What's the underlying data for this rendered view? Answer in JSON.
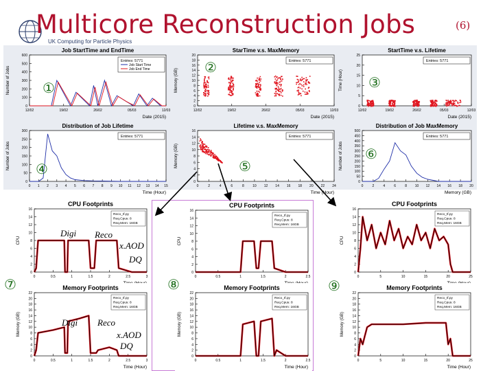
{
  "title": "Multicore Reconstruction Jobs",
  "title_sup": "(6)",
  "logo_text": "UK Computing for Particle Physics",
  "colors": {
    "title": "#b0122e",
    "circle": "#1d6e1b",
    "red": "#e0141e",
    "blue": "#1f2fa8",
    "black": "#000000",
    "frame": "#c77ad6"
  },
  "circled_numbers": [
    "①",
    "②",
    "③",
    "④",
    "⑤",
    "⑥",
    "⑦",
    "⑧",
    "⑨"
  ],
  "overlay_labels": {
    "p7_cpu": [
      "Digi",
      "Reco",
      "x.AOD",
      "DQ"
    ],
    "p7_mem": [
      "Digi",
      "Reco",
      "x.AOD",
      "DQ"
    ]
  },
  "chart_data": [
    {
      "id": "p1",
      "type": "line",
      "title": "Job StartTime and EndTime",
      "xlabel": "Date (2015)",
      "ylabel": "Number of Jobs",
      "ylim": [
        0,
        600
      ],
      "yticks": [
        "0",
        "100",
        "200",
        "300",
        "400",
        "500",
        "600"
      ],
      "xticks": [
        "12/02",
        "19/02",
        "26/02",
        "05/03",
        "12/03"
      ],
      "stats": "Entries: 5771",
      "legend": [
        "Job Start Time",
        "Job End Time"
      ],
      "series": [
        {
          "name": "Job Start Time",
          "x": [
            0,
            0.16,
            0.2,
            0.3,
            0.34,
            0.44,
            0.47,
            0.5,
            0.55,
            0.6,
            0.64,
            0.7,
            0.76,
            0.8,
            0.86,
            0.9,
            0.96,
            1
          ],
          "values": [
            0,
            0,
            300,
            0,
            160,
            0,
            240,
            0,
            300,
            0,
            120,
            60,
            0,
            140,
            0,
            90,
            0,
            0
          ]
        },
        {
          "name": "Job End Time",
          "x": [
            0,
            0.17,
            0.21,
            0.31,
            0.35,
            0.45,
            0.48,
            0.51,
            0.56,
            0.61,
            0.65,
            0.71,
            0.77,
            0.81,
            0.87,
            0.91,
            0.97,
            1
          ],
          "values": [
            0,
            0,
            280,
            0,
            150,
            0,
            220,
            0,
            280,
            0,
            110,
            50,
            0,
            130,
            0,
            80,
            0,
            0
          ]
        }
      ]
    },
    {
      "id": "p2",
      "type": "scatter",
      "title": "StarTime v.s. MaxMemory",
      "xlabel": "Date (2015)",
      "ylabel": "Memory (GB)",
      "ylim": [
        0,
        20
      ],
      "yticks": [
        "0",
        "2",
        "4",
        "6",
        "8",
        "10",
        "12",
        "14",
        "16",
        "18",
        "20"
      ],
      "xticks": [
        "12/02",
        "19/02",
        "26/02",
        "05/03",
        "12/03"
      ],
      "stats": "Entries: 5771",
      "clusters": [
        {
          "x": [
            0.04,
            0.08
          ],
          "y": [
            4,
            12
          ]
        },
        {
          "x": [
            0.22,
            0.26
          ],
          "y": [
            4,
            12
          ]
        },
        {
          "x": [
            0.42,
            0.46
          ],
          "y": [
            4,
            12
          ]
        },
        {
          "x": [
            0.56,
            0.62
          ],
          "y": [
            4,
            12
          ]
        },
        {
          "x": [
            0.72,
            0.82
          ],
          "y": [
            4,
            12
          ]
        }
      ]
    },
    {
      "id": "p3",
      "type": "scatter",
      "title": "StartTime v.s. Lifetime",
      "xlabel": "Date (2015)",
      "ylabel": "Time (Hour)",
      "ylim": [
        0,
        25
      ],
      "yticks": [
        "0",
        "5",
        "10",
        "15",
        "20",
        "25"
      ],
      "xticks": [
        "12/02",
        "19/02",
        "26/02",
        "05/03",
        "12/03"
      ],
      "stats": "Entries: 5771",
      "clusters": [
        {
          "x": [
            0.04,
            0.1
          ],
          "y": [
            0,
            3
          ]
        },
        {
          "x": [
            0.24,
            0.3
          ],
          "y": [
            0,
            3
          ]
        },
        {
          "x": [
            0.46,
            0.52
          ],
          "y": [
            0,
            3
          ]
        },
        {
          "x": [
            0.62,
            0.68
          ],
          "y": [
            0,
            3
          ]
        },
        {
          "x": [
            0.76,
            0.9
          ],
          "y": [
            0,
            3
          ]
        }
      ]
    },
    {
      "id": "p4",
      "type": "line",
      "title": "Distribution of Job Lifetime",
      "xlabel": "Time (Hour)",
      "ylabel": "Number of Jobs",
      "ylim": [
        0,
        300
      ],
      "yticks": [
        "0",
        "50",
        "100",
        "150",
        "200",
        "250",
        "300"
      ],
      "xticks": [
        "0",
        "1",
        "2",
        "3",
        "4",
        "5",
        "6",
        "7",
        "8",
        "9",
        "10",
        "11",
        "12",
        "13",
        "14",
        "15"
      ],
      "stats": "Entries: 5771",
      "series": [
        {
          "name": "",
          "x": [
            0,
            1,
            1.5,
            2,
            2.2,
            2.5,
            3,
            3.5,
            4,
            4.5,
            5,
            6,
            7,
            8,
            10,
            15
          ],
          "values": [
            0,
            0,
            20,
            280,
            240,
            180,
            150,
            80,
            40,
            20,
            10,
            5,
            3,
            2,
            0,
            0
          ]
        }
      ]
    },
    {
      "id": "p5",
      "type": "scatter",
      "title": "Lifetime v.s. MaxMemory",
      "xlabel": "Time (Hour)",
      "ylabel": "Memory (GB)",
      "ylim": [
        0,
        16
      ],
      "yticks": [
        "0",
        "2",
        "4",
        "6",
        "8",
        "10",
        "12",
        "14",
        "16"
      ],
      "xticks": [
        "0",
        "2",
        "4",
        "6",
        "8",
        "10",
        "12",
        "14",
        "16",
        "18",
        "20",
        "22",
        "24"
      ],
      "stats": "Entries: 5771",
      "clusters": [
        {
          "x": [
            0.5,
            4
          ],
          "y": [
            4,
            12
          ]
        }
      ]
    },
    {
      "id": "p6",
      "type": "line",
      "title": "Distribution of Job MaxMemory",
      "xlabel": "Memory (GB)",
      "ylabel": "Number of Jobs",
      "ylim": [
        0,
        500
      ],
      "yticks": [
        "0",
        "50",
        "100",
        "150",
        "200",
        "250",
        "300",
        "350",
        "400",
        "450",
        "500"
      ],
      "xticks": [
        "0",
        "2",
        "4",
        "6",
        "8",
        "10",
        "12",
        "14",
        "16",
        "18",
        "20"
      ],
      "stats": "Entries: 5771",
      "series": [
        {
          "name": "",
          "x": [
            0,
            2,
            3,
            4,
            5,
            6,
            7,
            8,
            9,
            10,
            11,
            12,
            13,
            14,
            20
          ],
          "values": [
            0,
            0,
            30,
            120,
            200,
            380,
            300,
            260,
            150,
            80,
            40,
            20,
            10,
            0,
            0
          ]
        }
      ]
    },
    {
      "id": "p7",
      "type": "line",
      "title": "CPU Footprints",
      "xlabel": "Time (Hour)",
      "ylabel": "CPU",
      "ylim": [
        0,
        16
      ],
      "yticks": [
        "0",
        "2",
        "4",
        "6",
        "8",
        "10",
        "12",
        "14",
        "16"
      ],
      "xticks": [
        "0",
        "0.5",
        "1",
        "1.5",
        "2",
        "2.5",
        "3"
      ],
      "legend_box": [
        "Reco_tf.py",
        "Req.Cpus: 8",
        "Req.Mem: 16GB"
      ],
      "series": [
        {
          "name": "",
          "x": [
            0,
            0.05,
            0.1,
            0.8,
            0.82,
            0.88,
            0.9,
            1.45,
            1.5,
            1.6,
            1.65,
            2.2,
            2.25,
            2.6,
            3
          ],
          "values": [
            0,
            1,
            8,
            8,
            0,
            0,
            8,
            8,
            1,
            1,
            8,
            8,
            1,
            0,
            0
          ]
        }
      ]
    },
    {
      "id": "p8",
      "type": "line",
      "title": "CPU Footprints",
      "xlabel": "Time (Hour)",
      "ylabel": "CPU",
      "ylim": [
        0,
        16
      ],
      "yticks": [
        "0",
        "2",
        "4",
        "6",
        "8",
        "10",
        "12",
        "14",
        "16"
      ],
      "xticks": [
        "0",
        "0.5",
        "1",
        "1.5",
        "2",
        "2.5"
      ],
      "legend_box": [
        "Reco_tf.py",
        "Req.Cpus: 8",
        "Req.Mem: 16GB"
      ],
      "series": [
        {
          "name": "",
          "x": [
            0,
            1.0,
            1.05,
            1.3,
            1.35,
            1.4,
            1.45,
            1.7,
            1.75,
            2.0,
            2.5
          ],
          "values": [
            0,
            0,
            8,
            8,
            1,
            1,
            8,
            8,
            1,
            0,
            0
          ]
        }
      ]
    },
    {
      "id": "p9",
      "type": "line",
      "title": "CPU Footprints",
      "xlabel": "Time (Hour)",
      "ylabel": "CPU",
      "ylim": [
        0,
        16
      ],
      "yticks": [
        "0",
        "2",
        "4",
        "6",
        "8",
        "10",
        "12",
        "14",
        "16"
      ],
      "xticks": [
        "0",
        "5",
        "10",
        "15",
        "20",
        "25"
      ],
      "legend_box": [
        "Reco_tf.py",
        "Req.Cpus: 8",
        "Req.Mem: 16GB"
      ],
      "series": [
        {
          "name": "",
          "x": [
            0,
            0.5,
            1,
            2,
            3,
            4,
            5,
            6,
            7,
            8,
            9,
            10,
            11,
            12,
            13,
            14,
            15,
            16,
            17,
            18,
            19,
            20,
            20.5,
            21,
            25
          ],
          "values": [
            0,
            6,
            14,
            8,
            12,
            6,
            10,
            7,
            13,
            8,
            11,
            6,
            9,
            7,
            12,
            8,
            10,
            6,
            11,
            8,
            9,
            7,
            2,
            0,
            0
          ]
        }
      ]
    },
    {
      "id": "p10",
      "type": "line",
      "title": "Memory Footprints",
      "xlabel": "Time (Hour)",
      "ylabel": "Memory (GB)",
      "ylim": [
        0,
        22
      ],
      "yticks": [
        "0",
        "2",
        "4",
        "6",
        "8",
        "10",
        "12",
        "14",
        "16",
        "18",
        "20",
        "22"
      ],
      "xticks": [
        "0",
        "0.5",
        "1",
        "1.5",
        "2",
        "2.5",
        "3"
      ],
      "legend_box": [
        "Reco_tf.py",
        "Req.Cpus: 8",
        "Req.Mem: 16GB"
      ],
      "series": [
        {
          "name": "",
          "x": [
            0,
            0.05,
            0.1,
            0.5,
            0.8,
            0.82,
            0.88,
            0.9,
            1.2,
            1.45,
            1.5,
            1.65,
            1.7,
            2.0,
            2.2,
            2.25,
            2.6,
            3
          ],
          "values": [
            0,
            2,
            8,
            9,
            10,
            1,
            1,
            12,
            13,
            14,
            1,
            1,
            2,
            3,
            2,
            0,
            0,
            0
          ]
        }
      ]
    },
    {
      "id": "p11",
      "type": "line",
      "title": "Memory Footprints",
      "xlabel": "Time (Hour)",
      "ylabel": "Memory (GB)",
      "ylim": [
        0,
        22
      ],
      "yticks": [
        "0",
        "2",
        "4",
        "6",
        "8",
        "10",
        "12",
        "14",
        "16",
        "18",
        "20",
        "22"
      ],
      "xticks": [
        "0",
        "0.5",
        "1",
        "1.5",
        "2",
        "2.5"
      ],
      "legend_box": [
        "Reco_tf.py",
        "Req.Cpus: 8",
        "Req.Mem: 16GB"
      ],
      "series": [
        {
          "name": "",
          "x": [
            0,
            1.0,
            1.05,
            1.3,
            1.35,
            1.4,
            1.45,
            1.7,
            1.75,
            1.8,
            1.9,
            2.0,
            2.5
          ],
          "values": [
            0,
            0,
            11,
            12,
            0,
            0,
            12,
            13,
            0,
            2,
            1,
            0,
            0
          ]
        }
      ]
    },
    {
      "id": "p12",
      "type": "line",
      "title": "Memory Footprints",
      "xlabel": "Time (Hour)",
      "ylabel": "Memory (GB)",
      "ylim": [
        0,
        22
      ],
      "yticks": [
        "0",
        "2",
        "4",
        "6",
        "8",
        "10",
        "12",
        "14",
        "16",
        "18",
        "20",
        "22"
      ],
      "xticks": [
        "0",
        "5",
        "10",
        "15",
        "20",
        "25"
      ],
      "legend_box": [
        "Reco_tf.py",
        "Req.Cpus: 8",
        "Req.Mem: 16GB"
      ],
      "series": [
        {
          "name": "",
          "x": [
            0,
            0.5,
            1,
            1.5,
            2,
            2.5,
            3,
            10,
            15,
            19.5,
            20,
            20.5,
            21,
            25
          ],
          "values": [
            0,
            6,
            4,
            7,
            10,
            10.5,
            11,
            11,
            11.5,
            11.5,
            4,
            6,
            0,
            0
          ]
        }
      ]
    }
  ]
}
